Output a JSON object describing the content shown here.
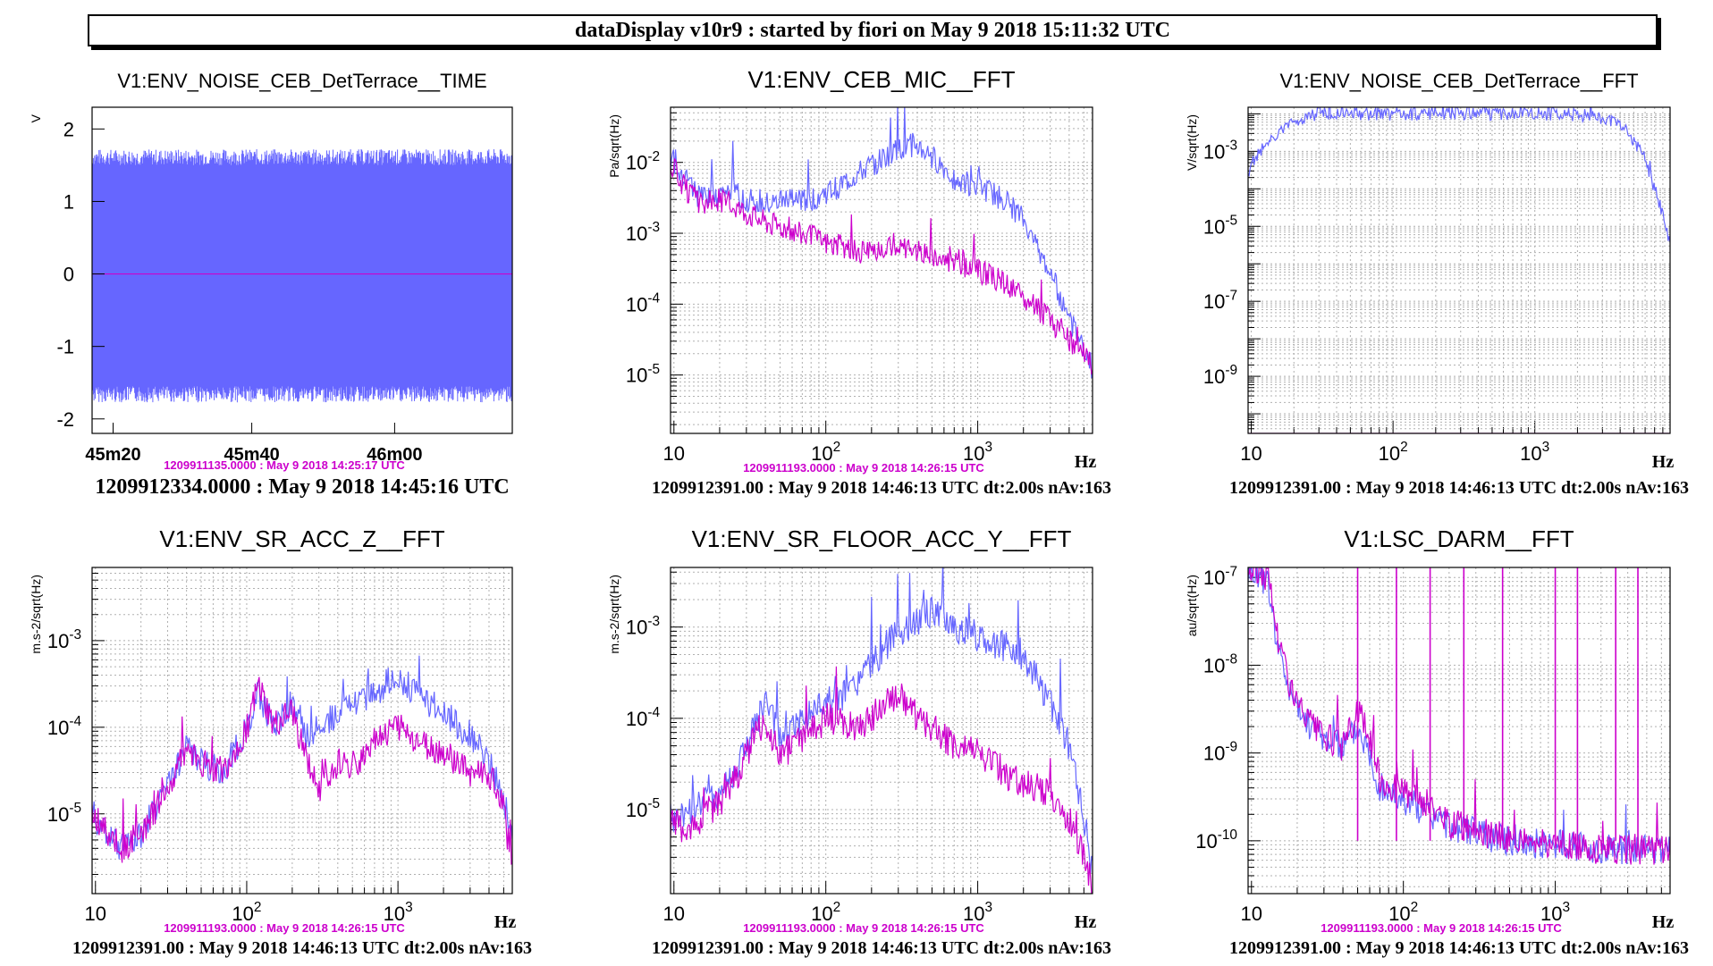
{
  "header": {
    "title": "dataDisplay v10r9 : started by fiori on May  9 2018 15:11:32 UTC"
  },
  "colors": {
    "series_a": "#6666ff",
    "series_b": "#cc00cc",
    "grid": "#b0b0b0",
    "frame": "#000000"
  },
  "chart_data": [
    {
      "type": "line",
      "title": "V1:ENV_NOISE_CEB_DetTerrace__TIME",
      "ylabel": "V",
      "xscale": "time",
      "xticklabels": [
        "45m20",
        "45m40",
        "46m00"
      ],
      "yscale": "linear",
      "ylim": [
        -2.2,
        2.3
      ],
      "yticks": [
        "-2",
        "-1",
        "0",
        "1",
        "2"
      ],
      "grid": false,
      "series": [
        {
          "style": "dense noise band",
          "values": [
            -1.55,
            1.5
          ]
        },
        {
          "style": "flat line",
          "values": [
            0,
            0
          ]
        }
      ],
      "reference_label": "1209911135.0000 : May  9 2018 14:25:17 UTC",
      "footer": "1209912334.0000 : May  9 2018 14:45:16 UTC"
    },
    {
      "type": "line",
      "title": "V1:ENV_CEB_MIC__FFT",
      "ylabel": "Pa/sqrt(Hz)",
      "xscale": "log",
      "xlim": [
        9.5,
        5700
      ],
      "xticks": [
        "10",
        "10^2",
        "10^3"
      ],
      "xlabel": "Hz",
      "yscale": "log",
      "ylim": [
        1.5e-06,
        0.06
      ],
      "yticks": [
        "10^-5",
        "10^-4",
        "10^-3",
        "10^-2"
      ],
      "grid": true,
      "series": [
        {
          "x": [
            9.5,
            12,
            15,
            20,
            25,
            30,
            40,
            55,
            80,
            110,
            150,
            200,
            280,
            380,
            500,
            700,
            1000,
            1500,
            2000,
            3000,
            4000,
            5000,
            5700
          ],
          "y": [
            0.012,
            0.006,
            0.003,
            0.0035,
            0.004,
            0.003,
            0.0025,
            0.0028,
            0.003,
            0.004,
            0.006,
            0.009,
            0.014,
            0.018,
            0.012,
            0.006,
            0.0045,
            0.003,
            0.0015,
            0.0003,
            6e-05,
            2.5e-05,
            1.2e-05
          ]
        },
        {
          "x": [
            9.5,
            12,
            15,
            20,
            25,
            30,
            40,
            55,
            80,
            110,
            150,
            200,
            280,
            380,
            500,
            700,
            1000,
            1500,
            2000,
            3000,
            4000,
            5000,
            5700
          ],
          "y": [
            0.01,
            0.004,
            0.0025,
            0.003,
            0.0025,
            0.002,
            0.0015,
            0.0012,
            0.0009,
            0.0007,
            0.0006,
            0.0005,
            0.0007,
            0.0006,
            0.0005,
            0.0004,
            0.0003,
            0.0002,
            0.00012,
            6e-05,
            3e-05,
            2e-05,
            1.2e-05
          ]
        }
      ],
      "reference_label": "1209911193.0000 : May  9 2018 14:26:15 UTC",
      "footer": "1209912391.00 : May  9 2018 14:46:13 UTC dt:2.00s nAv:163"
    },
    {
      "type": "line",
      "title": "V1:ENV_NOISE_CEB_DetTerrace__FFT",
      "ylabel": "V/sqrt(Hz)",
      "xscale": "log",
      "xlim": [
        9.5,
        9000
      ],
      "xticks": [
        "10",
        "10^2",
        "10^3"
      ],
      "xlabel": "Hz",
      "yscale": "log",
      "ylim": [
        3e-11,
        0.015
      ],
      "yticks": [
        "10^-9",
        "10^-7",
        "10^-5",
        "10^-3"
      ],
      "grid": true,
      "series": [
        {
          "x": [
            9.5,
            11,
            13,
            16,
            20,
            25,
            30,
            50,
            100,
            500,
            1000,
            2000,
            3000,
            4000,
            5000,
            6000,
            7000,
            8000,
            9000
          ],
          "y": [
            0.0003,
            0.0008,
            0.0015,
            0.003,
            0.006,
            0.009,
            0.01,
            0.01,
            0.01,
            0.01,
            0.01,
            0.0095,
            0.008,
            0.005,
            0.002,
            0.0006,
            0.0001,
            2e-05,
            3e-06
          ]
        },
        {
          "x": [
            9.5,
            9000
          ],
          "y": [
            3e-11,
            3e-11
          ]
        }
      ],
      "reference_label": "",
      "footer": "1209912391.00 : May  9 2018 14:46:13 UTC dt:2.00s nAv:163"
    },
    {
      "type": "line",
      "title": "V1:ENV_SR_ACC_Z__FFT",
      "ylabel": "m.s-2/sqrt(Hz)",
      "xscale": "log",
      "xlim": [
        9.5,
        5700
      ],
      "xticks": [
        "10",
        "10^2",
        "10^3"
      ],
      "xlabel": "Hz",
      "yscale": "log",
      "ylim": [
        1.2e-06,
        0.007
      ],
      "yticks": [
        "10^-5",
        "10^-4",
        "10^-3"
      ],
      "grid": true,
      "series": [
        {
          "x": [
            9.5,
            12,
            15,
            20,
            30,
            40,
            50,
            70,
            100,
            120,
            150,
            200,
            250,
            300,
            400,
            500,
            700,
            1000,
            1500,
            2000,
            3000,
            4000,
            5000,
            5700
          ],
          "y": [
            1e-05,
            6e-06,
            4e-06,
            6e-06,
            2e-05,
            6e-05,
            4e-05,
            3e-05,
            0.0001,
            0.00025,
            0.0001,
            0.0002,
            8e-05,
            0.0001,
            0.00015,
            0.0002,
            0.00025,
            0.0004,
            0.0002,
            0.00015,
            8e-05,
            4e-05,
            1.5e-05,
            5e-06
          ]
        },
        {
          "x": [
            9.5,
            12,
            15,
            20,
            30,
            40,
            50,
            70,
            100,
            120,
            150,
            200,
            250,
            300,
            400,
            500,
            700,
            1000,
            1500,
            2000,
            3000,
            4000,
            5000,
            5700
          ],
          "y": [
            1e-05,
            6e-06,
            4e-06,
            6e-06,
            2e-05,
            6e-05,
            4e-05,
            3e-05,
            0.0001,
            0.0003,
            0.0001,
            0.00015,
            4e-05,
            2e-05,
            4e-05,
            3e-05,
            8e-05,
            0.0001,
            6e-05,
            5e-05,
            3e-05,
            3e-05,
            1.2e-05,
            2e-06
          ]
        }
      ],
      "reference_label": "1209911193.0000 : May  9 2018 14:26:15 UTC",
      "footer": "1209912391.00 : May  9 2018 14:46:13 UTC dt:2.00s nAv:163"
    },
    {
      "type": "line",
      "title": "V1:ENV_SR_FLOOR_ACC_Y__FFT",
      "ylabel": "m.s-2/sqrt(Hz)",
      "xscale": "log",
      "xlim": [
        9.5,
        5700
      ],
      "xticks": [
        "10",
        "10^2",
        "10^3"
      ],
      "xlabel": "Hz",
      "yscale": "log",
      "ylim": [
        1.2e-06,
        0.0045
      ],
      "yticks": [
        "10^-5",
        "10^-4",
        "10^-3"
      ],
      "grid": true,
      "series": [
        {
          "x": [
            9.5,
            12,
            15,
            20,
            25,
            30,
            40,
            50,
            70,
            100,
            150,
            200,
            300,
            400,
            500,
            700,
            1000,
            1500,
            2000,
            3000,
            4000,
            5000,
            5700
          ],
          "y": [
            7e-06,
            9e-06,
            1.2e-05,
            1.5e-05,
            2.5e-05,
            5e-05,
            0.00015,
            6e-05,
            0.0001,
            0.00015,
            0.0002,
            0.0004,
            0.0009,
            0.0012,
            0.0015,
            0.001,
            0.0008,
            0.0006,
            0.0005,
            0.00015,
            5e-05,
            8e-06,
            2e-06
          ]
        },
        {
          "x": [
            9.5,
            12,
            15,
            20,
            25,
            30,
            40,
            50,
            70,
            100,
            150,
            200,
            300,
            400,
            500,
            700,
            1000,
            1500,
            2000,
            3000,
            4000,
            5000,
            5700
          ],
          "y": [
            7e-06,
            6e-06,
            8e-06,
            1.2e-05,
            2e-05,
            4e-05,
            0.0001,
            4e-05,
            6e-05,
            0.0001,
            8e-05,
            0.0001,
            0.0002,
            0.0001,
            8e-05,
            5e-05,
            4e-05,
            2.5e-05,
            2e-05,
            1.5e-05,
            8e-06,
            3e-06,
            1.5e-06
          ]
        }
      ],
      "reference_label": "1209911193.0000 : May  9 2018 14:26:15 UTC",
      "footer": "1209912391.00 : May  9 2018 14:46:13 UTC dt:2.00s nAv:163"
    },
    {
      "type": "line",
      "title": "V1:LSC_DARM__FFT",
      "ylabel": "au/sqrt(Hz)",
      "xscale": "log",
      "xlim": [
        9.5,
        5700
      ],
      "xticks": [
        "10",
        "10^2",
        "10^3"
      ],
      "xlabel": "Hz",
      "yscale": "log",
      "ylim": [
        2.5e-11,
        1.3e-07
      ],
      "yticks": [
        "10^-10",
        "10^-9",
        "10^-8",
        "10^-7"
      ],
      "grid": true,
      "series": [
        {
          "x": [
            9.5,
            11,
            13,
            15,
            18,
            20,
            25,
            30,
            40,
            50,
            60,
            70,
            100,
            150,
            200,
            300,
            500,
            1000,
            2000,
            5700
          ],
          "y": [
            1.2e-07,
            1.1e-07,
            8e-08,
            1.5e-08,
            5e-09,
            3e-09,
            2e-09,
            1.5e-09,
            1.2e-09,
            2e-09,
            1e-09,
            4e-10,
            3e-10,
            2e-10,
            1.5e-10,
            1.2e-10,
            1e-10,
            9e-11,
            8e-11,
            8e-11
          ]
        },
        {
          "x": [
            9.5,
            11,
            13,
            15,
            18,
            20,
            25,
            30,
            40,
            50,
            60,
            70,
            100,
            150,
            200,
            300,
            500,
            1000,
            2000,
            5700
          ],
          "y": [
            1.2e-07,
            1.2e-07,
            1e-07,
            2e-08,
            6e-09,
            3.5e-09,
            2e-09,
            1.5e-09,
            1.2e-09,
            3e-09,
            1.5e-09,
            5e-10,
            3.5e-10,
            2.5e-10,
            1.6e-10,
            1.3e-10,
            1.1e-10,
            9e-11,
            8e-11,
            8e-11
          ]
        }
      ],
      "spikes_hz": [
        50,
        90,
        150,
        250,
        450,
        1000,
        1400,
        2500,
        3500
      ],
      "reference_label": "1209911193.0000 : May  9 2018 14:26:15 UTC",
      "footer": "1209912391.00 : May  9 2018 14:46:13 UTC dt:2.00s nAv:163"
    }
  ]
}
